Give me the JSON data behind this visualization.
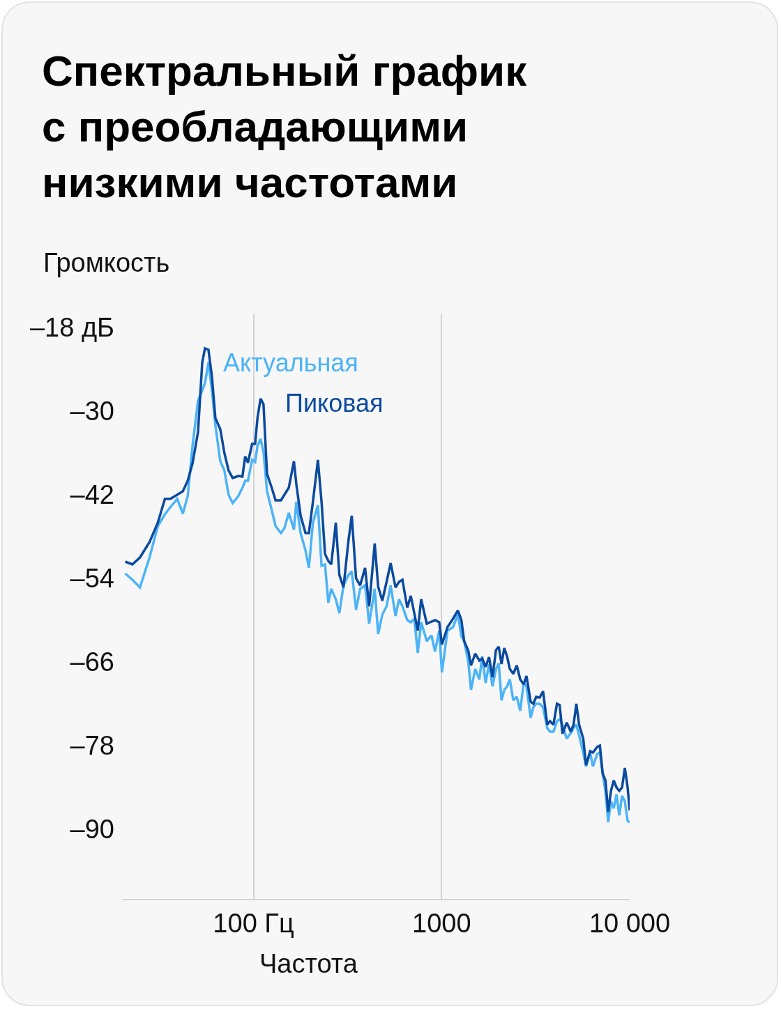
{
  "chart_data": {
    "type": "line",
    "title": "Спектральный график с преобладающими низкими частотами",
    "ylabel": "Громкость",
    "xlabel": "Частота",
    "log": "x",
    "grid": "x",
    "legend": false,
    "marker": "none",
    "line_style": "solid",
    "x": [
      20.8,
      22.7,
      24.9,
      28.0,
      31.0,
      33.8,
      36.1,
      39.3,
      42.1,
      44.7,
      47.4,
      50.7,
      53.4,
      55.2,
      57.6,
      60.1,
      62.7,
      66.6,
      70.0,
      73.7,
      77.5,
      83.0,
      87.3,
      90.3,
      93.4,
      98.3,
      102,
      105,
      109,
      113,
      118,
      125,
      131,
      140,
      146,
      154,
      164,
      169,
      178,
      189,
      197,
      207,
      220,
      230,
      240,
      250,
      259,
      274,
      286,
      301,
      320,
      333,
      351,
      369,
      392,
      412,
      441,
      460,
      484,
      510,
      536,
      569,
      594,
      619,
      657,
      686,
      716,
      747,
      779,
      834,
      884,
      923,
      971,
      1004,
      1075,
      1150,
      1221,
      1274,
      1318,
      1387,
      1434,
      1509,
      1588,
      1643,
      1714,
      1788,
      1865,
      1946,
      2013,
      2083,
      2154,
      2229,
      2306,
      2406,
      2510,
      2618,
      2733,
      2827,
      2974,
      3076,
      3183,
      3321,
      3464,
      3645,
      3771,
      3933,
      4105,
      4246,
      4394,
      4624,
      4864,
      5031,
      5205,
      5384,
      5664,
      5861,
      6166,
      6379,
      6714,
      6945,
      7183,
      7431,
      7688,
      7952,
      8228,
      8511,
      8807,
      9111,
      9424,
      9750,
      10000
    ],
    "series": [
      {
        "name": "Актуальная",
        "color": "#4db3f7",
        "values": [
          -53.3,
          -54.2,
          -55.3,
          -51.0,
          -46.5,
          -44.8,
          -43.8,
          -42.6,
          -44.7,
          -42.2,
          -35.0,
          -28.5,
          -27.0,
          -26.0,
          -23.0,
          -27.0,
          -32.0,
          -37.2,
          -38.5,
          -42.0,
          -43.2,
          -42.2,
          -41.0,
          -40.0,
          -40.0,
          -37.0,
          -37.3,
          -35.0,
          -34.0,
          -35.8,
          -41.5,
          -44.2,
          -46.5,
          -47.5,
          -46.8,
          -44.6,
          -47.0,
          -43.0,
          -47.5,
          -50.0,
          -52.5,
          -46.0,
          -43.5,
          -52.2,
          -52.0,
          -57.5,
          -55.5,
          -57.0,
          -59.0,
          -55.0,
          -53.5,
          -53.0,
          -58.5,
          -55.5,
          -55.0,
          -60.5,
          -55.5,
          -62.0,
          -59.2,
          -58.0,
          -55.0,
          -59.4,
          -57.0,
          -58.0,
          -60.0,
          -60.3,
          -59.8,
          -64.7,
          -60.3,
          -63.0,
          -62.2,
          -64.5,
          -61.5,
          -67.5,
          -61.5,
          -61.0,
          -59.2,
          -62.3,
          -63.0,
          -66.0,
          -70.0,
          -67.0,
          -68.5,
          -65.2,
          -69.0,
          -66.3,
          -69.5,
          -67.0,
          -66.2,
          -71.5,
          -70.0,
          -69.5,
          -68.5,
          -71.5,
          -71.0,
          -73.0,
          -69.0,
          -69.5,
          -74.0,
          -72.5,
          -72.0,
          -72.0,
          -72.5,
          -75.5,
          -76.0,
          -76.0,
          -74.5,
          -74.2,
          -75.0,
          -77.0,
          -76.2,
          -75.5,
          -75.0,
          -76.5,
          -79.0,
          -81.0,
          -79.0,
          -81.0,
          -79.2,
          -79.0,
          -82.0,
          -84.5,
          -89.0,
          -86.0,
          -87.0,
          -85.0,
          -88.0,
          -85.2,
          -86.0,
          -88.8,
          -89.0
        ]
      },
      {
        "name": "Пиковая",
        "color": "#0b4a9e",
        "values": [
          -51.6,
          -52.0,
          -51.0,
          -48.8,
          -46.0,
          -42.6,
          -42.6,
          -42.0,
          -41.5,
          -40.0,
          -37.5,
          -33.0,
          -23.0,
          -21.0,
          -21.2,
          -25.0,
          -31.0,
          -32.6,
          -36.0,
          -38.5,
          -39.6,
          -39.3,
          -39.4,
          -36.5,
          -37.4,
          -34.7,
          -34.7,
          -31.0,
          -28.2,
          -29.0,
          -39.0,
          -41.0,
          -42.8,
          -42.8,
          -42.0,
          -41.0,
          -37.2,
          -40.5,
          -45.0,
          -47.5,
          -47.5,
          -43.0,
          -37.0,
          -43.0,
          -50.5,
          -51.5,
          -52.0,
          -46.0,
          -53.5,
          -55.3,
          -48.5,
          -45.0,
          -54.0,
          -55.0,
          -52.5,
          -58.0,
          -49.0,
          -55.2,
          -57.2,
          -54.5,
          -51.8,
          -55.3,
          -54.5,
          -54.2,
          -58.2,
          -56.5,
          -59.0,
          -61.5,
          -57.0,
          -60.5,
          -60.2,
          -60.0,
          -60.3,
          -63.5,
          -61.0,
          -59.8,
          -58.6,
          -60.0,
          -63.0,
          -64.4,
          -66.5,
          -64.8,
          -65.8,
          -65.5,
          -66.7,
          -65.3,
          -68.2,
          -64.3,
          -63.8,
          -66.3,
          -64.0,
          -65.2,
          -67.0,
          -67.7,
          -66.5,
          -68.5,
          -69.2,
          -68.0,
          -71.7,
          -72.0,
          -71.0,
          -71.1,
          -70.2,
          -75.0,
          -74.5,
          -75.0,
          -72.0,
          -72.2,
          -76.3,
          -74.7,
          -76.0,
          -75.0,
          -72.0,
          -75.0,
          -77.0,
          -80.8,
          -78.8,
          -79.0,
          -78.2,
          -78.0,
          -82.0,
          -83.0,
          -87.5,
          -84.5,
          -83.0,
          -84.0,
          -84.5,
          -84.0,
          -81.2,
          -84.0,
          -87.3
        ]
      }
    ],
    "xlim": [
      20,
      10000
    ],
    "xticks": [
      {
        "value": 100,
        "label": "100 Гц"
      },
      {
        "value": 1000,
        "label": "1000"
      },
      {
        "value": 10000,
        "label": "10 000"
      }
    ],
    "ylim": [
      -100,
      -16
    ],
    "yticks": [
      {
        "value": -18,
        "label": "–18 дБ"
      },
      {
        "value": -30,
        "label": "–30"
      },
      {
        "value": -42,
        "label": "–42"
      },
      {
        "value": -54,
        "label": "–54"
      },
      {
        "value": -66,
        "label": "–66"
      },
      {
        "value": -78,
        "label": "–78"
      },
      {
        "value": -90,
        "label": "–90"
      }
    ]
  }
}
